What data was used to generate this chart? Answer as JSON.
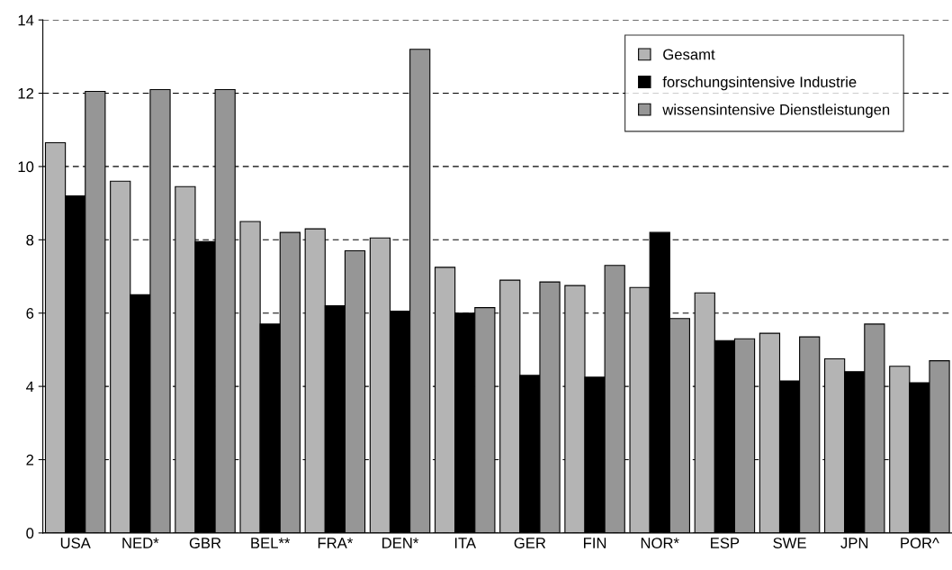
{
  "chart_data": {
    "type": "bar",
    "categories": [
      "USA",
      "NED*",
      "GBR",
      "BEL**",
      "FRA*",
      "DEN*",
      "ITA",
      "GER",
      "FIN",
      "NOR*",
      "ESP",
      "SWE",
      "JPN",
      "POR^"
    ],
    "series": [
      {
        "name": "Gesamt",
        "color": "#b4b4b4",
        "values": [
          10.65,
          9.6,
          9.45,
          8.5,
          8.3,
          8.05,
          7.25,
          6.9,
          6.75,
          6.7,
          6.55,
          5.45,
          4.75,
          4.55
        ]
      },
      {
        "name": "forschungsintensive Industrie",
        "color": "#000000",
        "values": [
          9.2,
          6.5,
          7.95,
          5.7,
          6.2,
          6.05,
          6.0,
          4.3,
          4.25,
          8.2,
          5.25,
          4.15,
          4.4,
          4.1
        ]
      },
      {
        "name": "wissensintensive Dienstleistungen",
        "color": "#969696",
        "values": [
          12.05,
          12.1,
          12.1,
          8.2,
          7.7,
          13.2,
          6.15,
          6.85,
          7.3,
          5.85,
          5.3,
          5.35,
          5.7,
          4.7
        ]
      }
    ],
    "ylim": [
      0,
      14
    ],
    "yticks": [
      0,
      2,
      4,
      6,
      8,
      10,
      12,
      14
    ],
    "grid": "y",
    "legend": "top right"
  }
}
